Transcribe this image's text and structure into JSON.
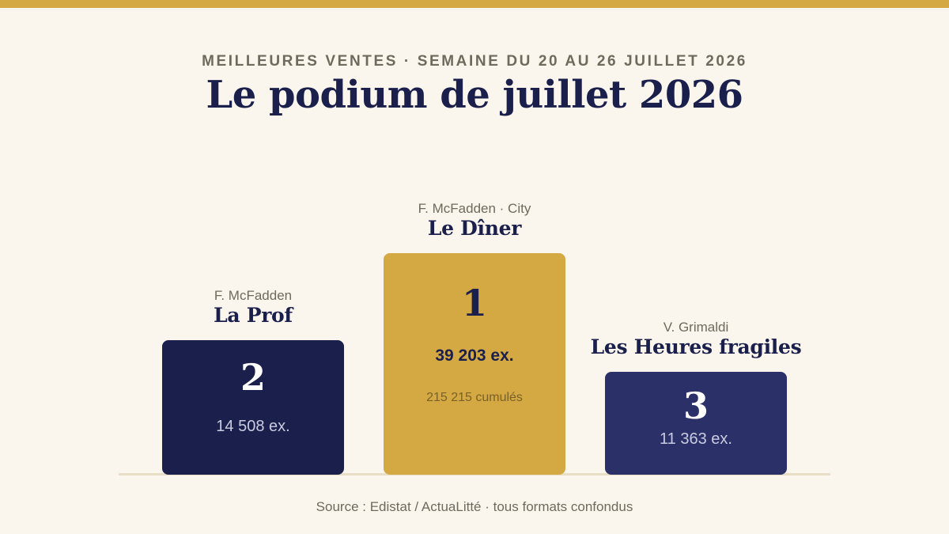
{
  "header": {
    "kicker": "MEILLEURES VENTES · SEMAINE DU 20 AU 26 JUILLET 2026",
    "title": "Le podium de juillet 2026"
  },
  "colors": {
    "accent": "#d4a843",
    "first": "#d4a843",
    "second": "#1b1f4b",
    "third": "#2b3068",
    "ink": "#1b1f4b",
    "muted": "#6e6a5c",
    "background": "#faf6ee"
  },
  "chart_data": {
    "type": "bar",
    "categories": [
      "La Prof",
      "Le Dîner",
      "Les Heures fragiles"
    ],
    "values": [
      14508,
      39203,
      11363
    ],
    "entries": [
      {
        "rank": "2",
        "author": "F. McFadden",
        "title": "La Prof",
        "copies": 14508,
        "copies_label": "14 508 ex.",
        "cumulative_label": ""
      },
      {
        "rank": "1",
        "author": "F. McFadden · City",
        "title": "Le Dîner",
        "copies": 39203,
        "copies_label": "39 203 ex.",
        "cumulative": 215215,
        "cumulative_label": "215 215 cumulés"
      },
      {
        "rank": "3",
        "author": "V. Grimaldi",
        "title": "Les Heures fragiles",
        "copies": 11363,
        "copies_label": "11 363 ex.",
        "cumulative_label": ""
      }
    ]
  },
  "footer": {
    "source": "Source : Edistat / ActuaLitté · tous formats confondus"
  }
}
